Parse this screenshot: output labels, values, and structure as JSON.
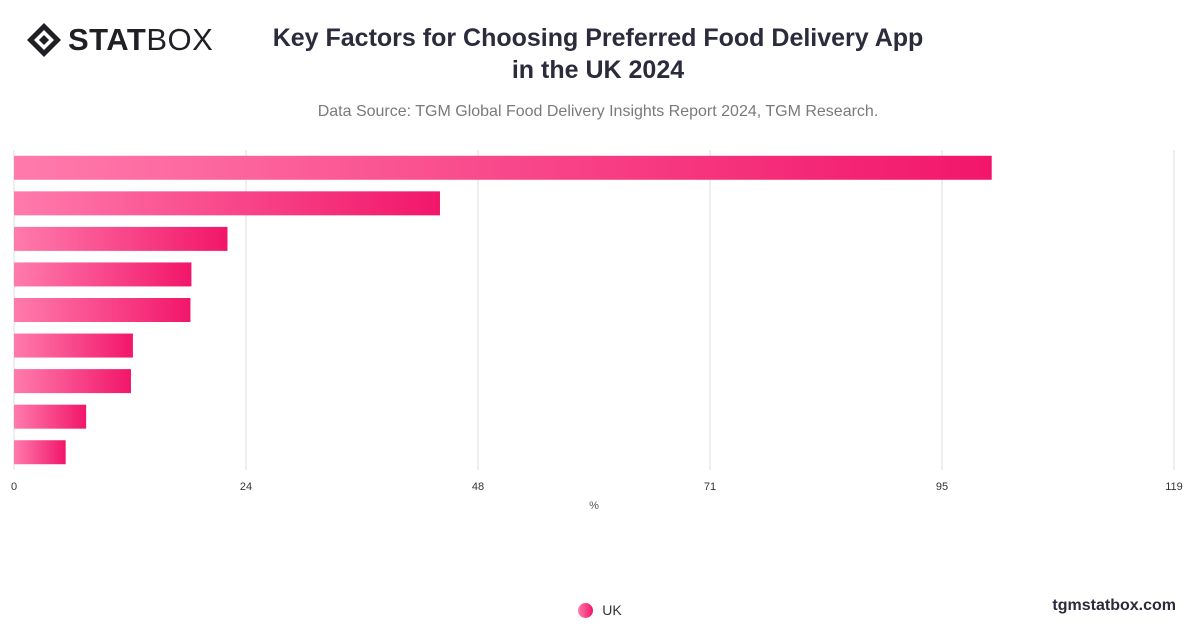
{
  "brand": {
    "logo_bold": "STAT",
    "logo_light": "BOX",
    "site": "tgmstatbox.com"
  },
  "header": {
    "title_line1": "Key Factors for Choosing Preferred Food Delivery App",
    "title_line2": "in the UK 2024",
    "source": "Data Source: TGM Global Food Delivery Insights Report 2024, TGM Research."
  },
  "colors": {
    "bar_start": "#ff7bac",
    "bar_end": "#f2166a",
    "grid": "#dddddd",
    "axis_text": "#333333"
  },
  "chart_data": {
    "type": "bar",
    "orientation": "horizontal",
    "title": "Key Factors for Choosing Preferred Food Delivery App in the UK 2024",
    "xlabel": "%",
    "ylabel": "",
    "xlim": [
      0,
      119
    ],
    "xticks": [
      "0",
      "24",
      "48",
      "71",
      "95",
      "119"
    ],
    "tick_values": [
      0,
      23.8,
      47.6,
      71.4,
      95.2,
      119
    ],
    "grid": true,
    "legend_position": "bottom",
    "categories": [
      "",
      "",
      "",
      "",
      "",
      "",
      "",
      "",
      ""
    ],
    "series": [
      {
        "name": "UK",
        "values": [
          100.3,
          43.7,
          21.9,
          18.2,
          18.1,
          12.2,
          12.0,
          7.4,
          5.3
        ]
      }
    ]
  }
}
